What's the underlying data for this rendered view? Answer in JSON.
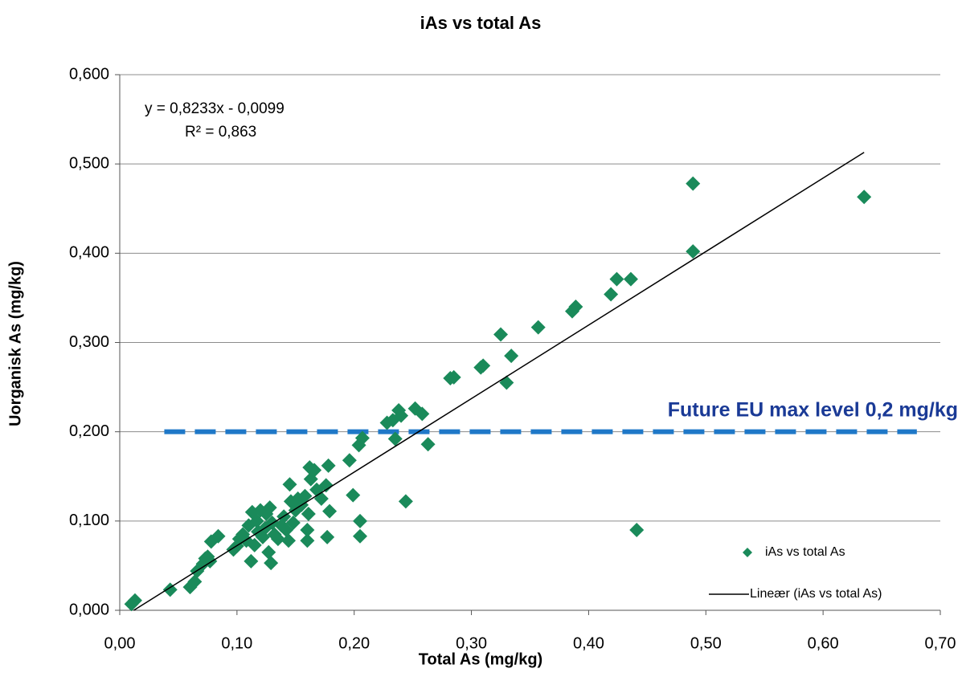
{
  "chart_data": {
    "type": "scatter",
    "title": "iAs vs total As",
    "x_label": "Total As (mg/kg)",
    "y_label": "Uorganisk As (mg/kg)",
    "xlim": [
      0,
      0.7
    ],
    "ylim": [
      0,
      0.6
    ],
    "xticks": [
      {
        "value": 0,
        "label": "0,00"
      },
      {
        "value": 0.1,
        "label": "0,10"
      },
      {
        "value": 0.2,
        "label": "0,20"
      },
      {
        "value": 0.3,
        "label": "0,30"
      },
      {
        "value": 0.4,
        "label": "0,40"
      },
      {
        "value": 0.5,
        "label": "0,50"
      },
      {
        "value": 0.6,
        "label": "0,60"
      },
      {
        "value": 0.7,
        "label": "0,70"
      }
    ],
    "yticks": [
      {
        "value": 0,
        "label": "0,000"
      },
      {
        "value": 0.1,
        "label": "0,100"
      },
      {
        "value": 0.2,
        "label": "0,200"
      },
      {
        "value": 0.3,
        "label": "0,300"
      },
      {
        "value": 0.4,
        "label": "0,400"
      },
      {
        "value": 0.5,
        "label": "0,500"
      },
      {
        "value": 0.6,
        "label": "0,600"
      }
    ],
    "grid": true,
    "legend": "lower right",
    "series": [
      {
        "name": "iAs vs total As",
        "color": "#1a8a5a",
        "x": [
          0.01,
          0.013,
          0.043,
          0.06,
          0.064,
          0.066,
          0.071,
          0.073,
          0.077,
          0.078,
          0.084,
          0.075,
          0.097,
          0.1,
          0.102,
          0.105,
          0.108,
          0.11,
          0.112,
          0.113,
          0.115,
          0.117,
          0.118,
          0.12,
          0.122,
          0.124,
          0.125,
          0.127,
          0.128,
          0.129,
          0.13,
          0.132,
          0.135,
          0.138,
          0.14,
          0.142,
          0.144,
          0.145,
          0.146,
          0.148,
          0.15,
          0.152,
          0.155,
          0.158,
          0.16,
          0.16,
          0.161,
          0.162,
          0.163,
          0.166,
          0.168,
          0.172,
          0.176,
          0.177,
          0.178,
          0.179,
          0.196,
          0.199,
          0.204,
          0.205,
          0.205,
          0.207,
          0.228,
          0.233,
          0.235,
          0.238,
          0.24,
          0.244,
          0.252,
          0.258,
          0.263,
          0.282,
          0.285,
          0.308,
          0.31,
          0.325,
          0.33,
          0.334,
          0.357,
          0.386,
          0.389,
          0.419,
          0.424,
          0.436,
          0.441,
          0.489,
          0.489,
          0.635
        ],
        "values": [
          0.007,
          0.011,
          0.023,
          0.026,
          0.032,
          0.044,
          0.052,
          0.058,
          0.055,
          0.077,
          0.083,
          0.06,
          0.068,
          0.072,
          0.08,
          0.085,
          0.078,
          0.095,
          0.055,
          0.11,
          0.073,
          0.1,
          0.088,
          0.112,
          0.082,
          0.092,
          0.108,
          0.065,
          0.115,
          0.053,
          0.098,
          0.085,
          0.08,
          0.095,
          0.105,
          0.09,
          0.078,
          0.141,
          0.122,
          0.098,
          0.112,
          0.125,
          0.118,
          0.128,
          0.078,
          0.09,
          0.108,
          0.16,
          0.147,
          0.157,
          0.135,
          0.125,
          0.14,
          0.082,
          0.162,
          0.111,
          0.168,
          0.129,
          0.185,
          0.1,
          0.083,
          0.193,
          0.21,
          0.213,
          0.192,
          0.224,
          0.218,
          0.122,
          0.226,
          0.22,
          0.186,
          0.26,
          0.261,
          0.272,
          0.274,
          0.309,
          0.255,
          0.285,
          0.317,
          0.335,
          0.34,
          0.354,
          0.371,
          0.371,
          0.09,
          0.478,
          0.402,
          0.463
        ]
      }
    ],
    "trendline": {
      "name": "Lineær (iAs vs total As)",
      "color": "#000000",
      "x": [
        0.012,
        0.635
      ],
      "values": [
        0,
        0.513
      ],
      "equation": "y = 0,8233x - 0,0099",
      "r_squared": "R² = 0,863"
    },
    "reference_line": {
      "value": 0.2,
      "x": [
        0.038,
        0.68
      ],
      "label": "Future EU max level 0,2 mg/kg",
      "color": "#1f78c8",
      "label_color": "#1a3a96"
    }
  }
}
